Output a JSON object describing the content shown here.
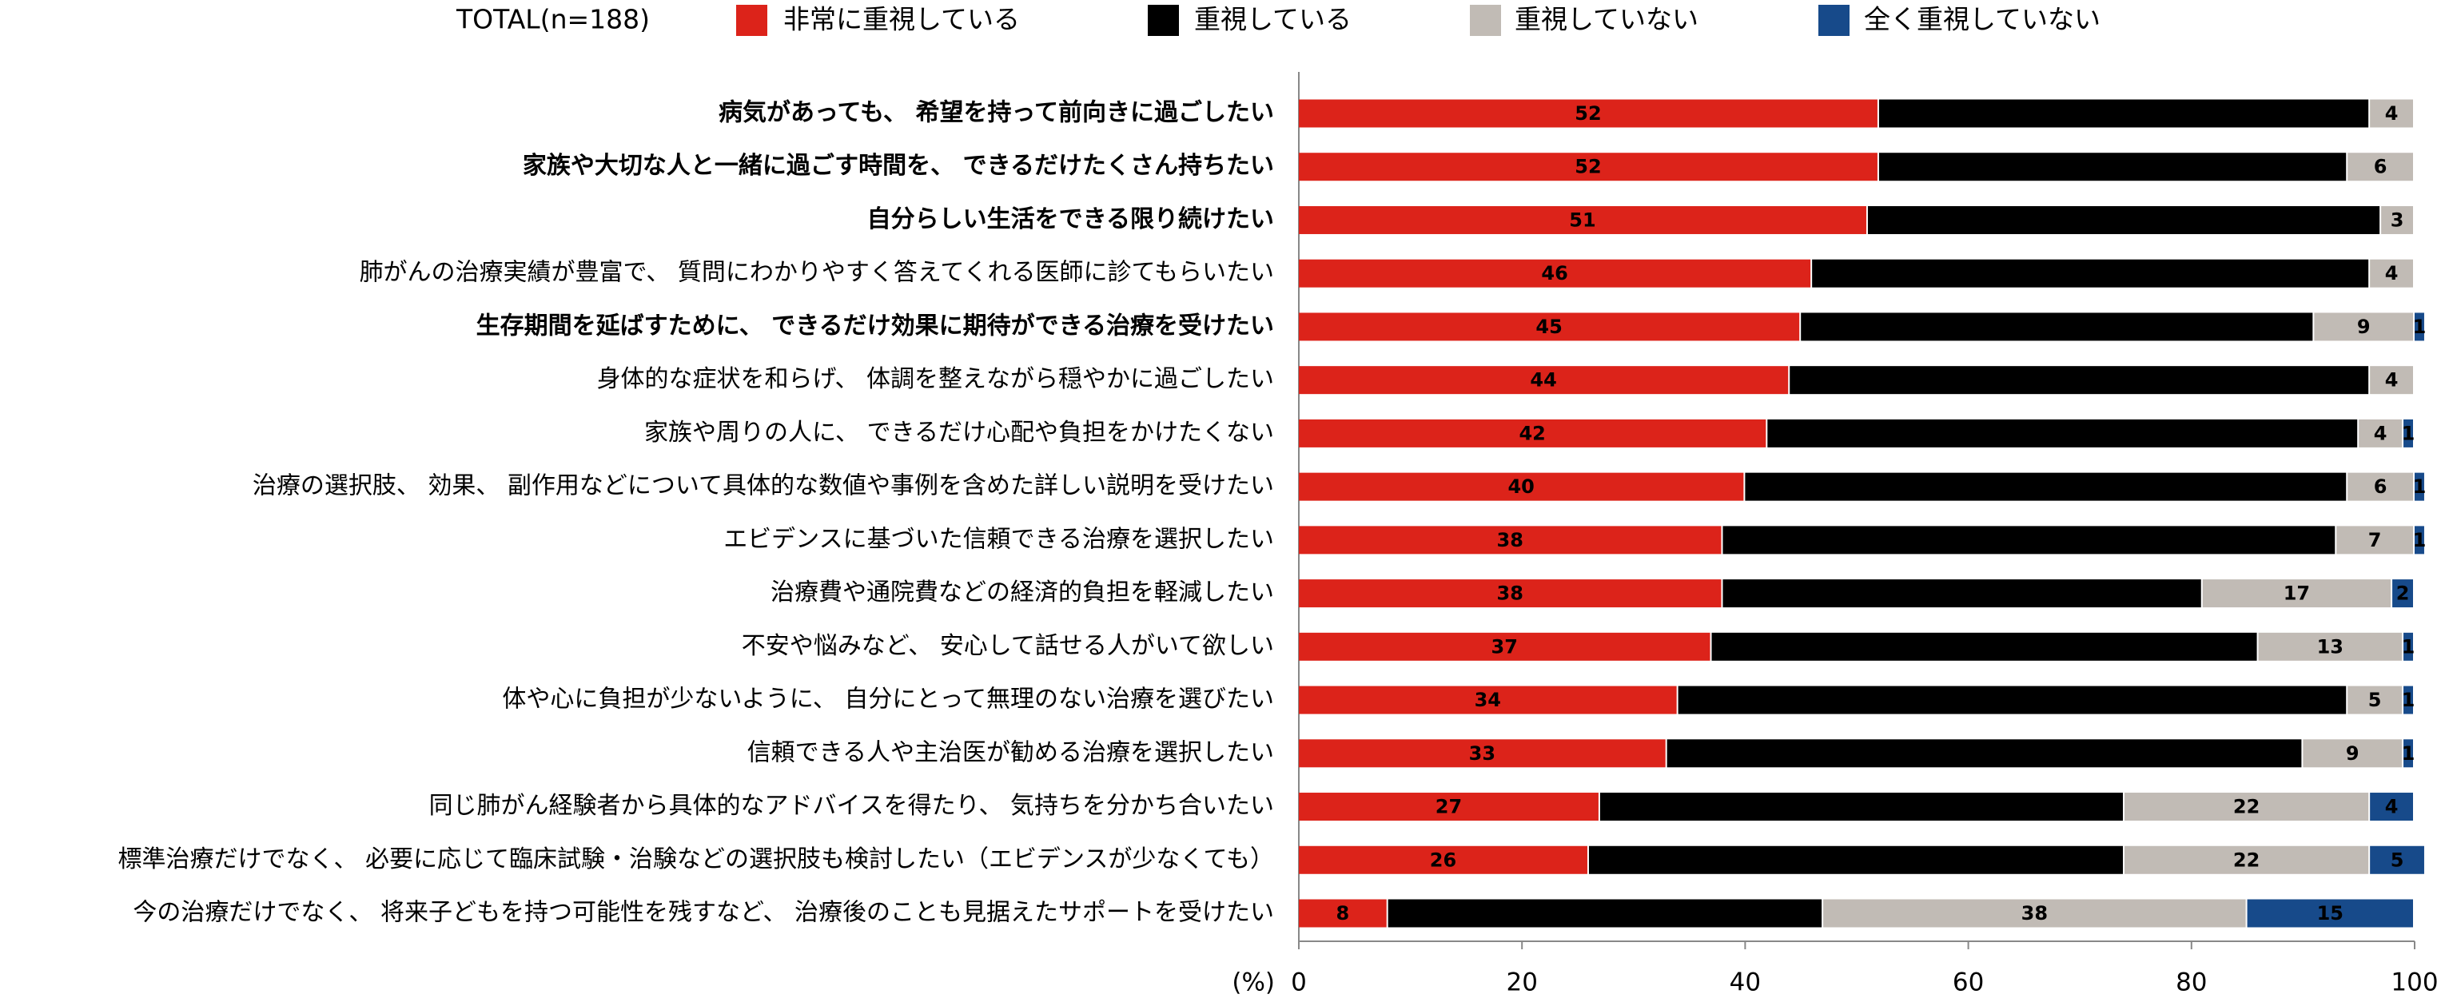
{
  "chart_data": {
    "type": "stacked-bar-horizontal",
    "subtitle": "TOTAL(n=188)",
    "xlabel": "(%)",
    "categories": [
      "病気があっても、 希望を持って前向きに過ごしたい",
      "家族や大切な人と一緒に過ごす時間を、 できるだけたくさん持ちたい",
      "自分らしい生活をできる限り続けたい",
      "肺がんの治療実績が豊富で、 質問にわかりやすく答えてくれる医師に診てもらいたい",
      "生存期間を延ばすために、 できるだけ効果に期待ができる治療を受けたい",
      "身体的な症状を和らげ、 体調を整えながら穏やかに過ごしたい",
      "家族や周りの人に、 できるだけ心配や負担をかけたくない",
      "治療の選択肢、 効果、 副作用などについて具体的な数値や事例を含めた詳しい説明を受けたい",
      "エビデンスに基づいた信頼できる治療を選択したい",
      "治療費や通院費などの経済的負担を軽減したい",
      "不安や悩みなど、 安心して話せる人がいて欲しい",
      "体や心に負担が少ないように、 自分にとって無理のない治療を選びたい",
      "信頼できる人や主治医が勧める治療を選択したい",
      "同じ肺がん経験者から具体的なアドバイスを得たり、 気持ちを分かち合いたい",
      "標準治療だけでなく、 必要に応じて臨床試験・治験などの選択肢も検討したい（エビデンスが少なくても）",
      "今の治療だけでなく、 将来子どもを持つ可能性を残すなど、 治療後のことも見据えたサポートを受けたい"
    ],
    "bold_categories": [
      true,
      true,
      true,
      false,
      true,
      false,
      false,
      false,
      false,
      false,
      false,
      false,
      false,
      false,
      false,
      false
    ],
    "series": [
      {
        "name": "非常に重視している",
        "color": "#dc231a",
        "label_color": "#ffffff",
        "values": [
          52,
          52,
          51,
          46,
          45,
          44,
          42,
          40,
          38,
          38,
          37,
          34,
          33,
          27,
          26,
          8
        ]
      },
      {
        "name": "重視している",
        "color": "#000000",
        "label_color": "#ffffff",
        "values": [
          44,
          42,
          46,
          50,
          46,
          52,
          53,
          54,
          55,
          43,
          49,
          60,
          57,
          47,
          48,
          39
        ]
      },
      {
        "name": "重視していない",
        "color": "#c1bbb5",
        "label_color": "#000000",
        "values": [
          4,
          6,
          3,
          4,
          9,
          4,
          4,
          6,
          7,
          17,
          13,
          5,
          9,
          22,
          22,
          38
        ]
      },
      {
        "name": "全く重視していない",
        "color": "#174a8a",
        "label_color": "#ffffff",
        "values": [
          0,
          0,
          0,
          0,
          1,
          0,
          1,
          1,
          1,
          2,
          1,
          1,
          1,
          4,
          5,
          15
        ]
      }
    ],
    "xlim": [
      0,
      100
    ],
    "xticks": [
      0,
      20,
      40,
      60,
      80,
      100
    ]
  }
}
